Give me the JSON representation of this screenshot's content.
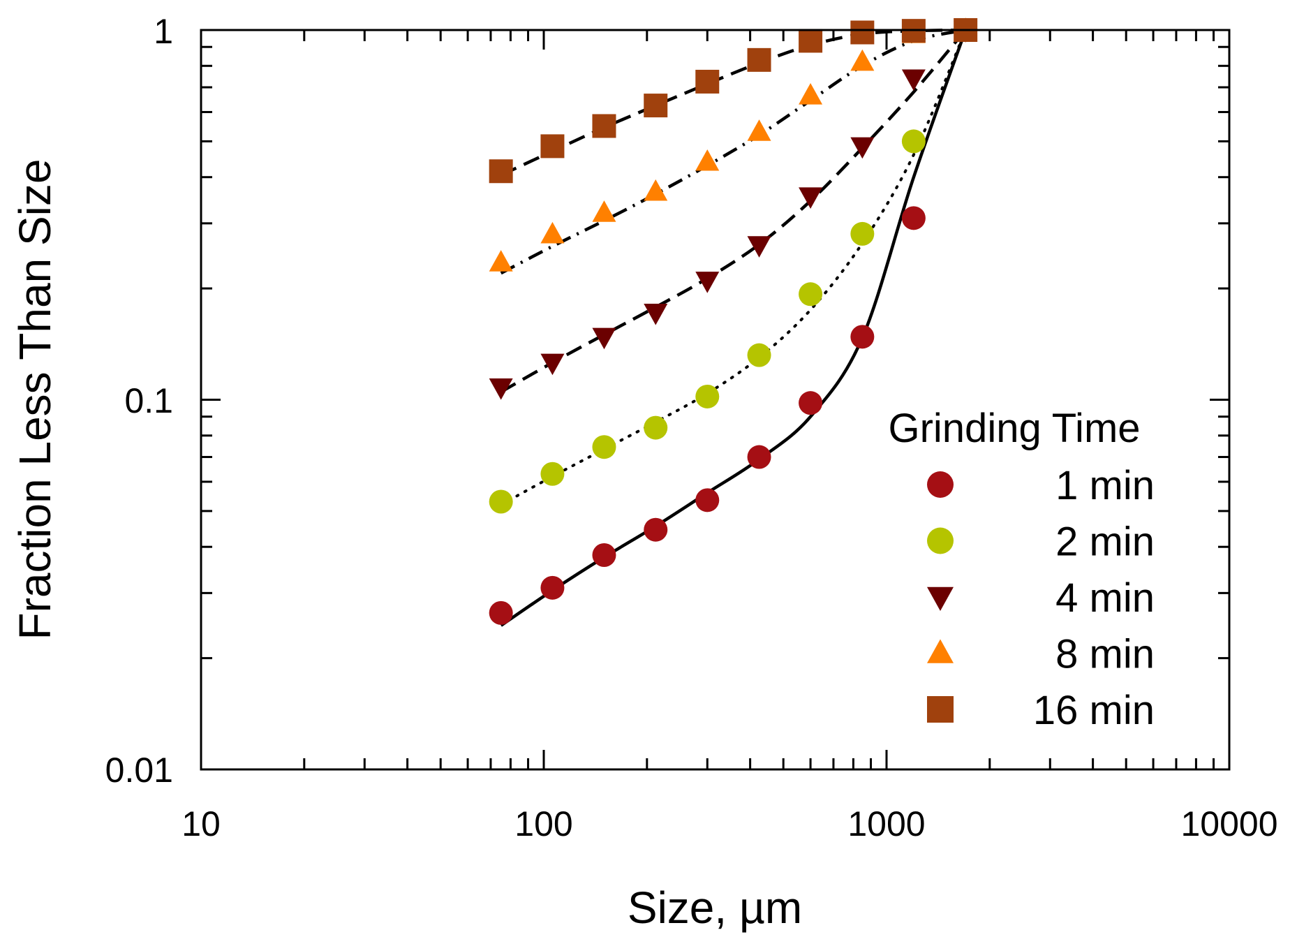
{
  "chart_data": {
    "type": "scatter",
    "title": "",
    "xlabel": "Size, µm",
    "ylabel": "Fraction Less Than Size",
    "xscale": "log",
    "yscale": "log",
    "xlim": [
      10,
      10000
    ],
    "ylim": [
      0.01,
      1
    ],
    "x_tick_labels": [
      "10",
      "100",
      "1000",
      "10000"
    ],
    "y_tick_labels": [
      "0.01",
      "0.1",
      "1"
    ],
    "grid": false,
    "legend": {
      "title": "Grinding Time",
      "position": "bottom-right"
    },
    "x": [
      75,
      106,
      150,
      212,
      300,
      425,
      600,
      850,
      1200,
      1700
    ],
    "series": [
      {
        "name": "1 min",
        "marker": "circle",
        "color": "#a50f14",
        "fit_line": "solid",
        "values": [
          0.0265,
          0.031,
          0.038,
          0.0445,
          0.0535,
          0.07,
          0.098,
          0.148,
          0.31,
          1.0
        ],
        "fit": [
          0.0245,
          0.0305,
          0.0375,
          0.0455,
          0.056,
          0.069,
          0.09,
          0.147,
          0.4,
          1.0
        ]
      },
      {
        "name": "2 min",
        "marker": "circle",
        "color": "#b5c400",
        "fit_line": "dotted",
        "values": [
          0.053,
          0.063,
          0.0745,
          0.084,
          0.102,
          0.132,
          0.193,
          0.281,
          0.5,
          1.0
        ],
        "fit": [
          0.052,
          0.062,
          0.0735,
          0.087,
          0.104,
          0.13,
          0.175,
          0.265,
          0.46,
          1.0
        ]
      },
      {
        "name": "4 min",
        "marker": "triangle-down",
        "color": "#6b0000",
        "fit_line": "dashed",
        "values": [
          0.108,
          0.126,
          0.148,
          0.172,
          0.21,
          0.262,
          0.355,
          0.485,
          0.74,
          1.0
        ],
        "fit": [
          0.105,
          0.126,
          0.15,
          0.178,
          0.213,
          0.263,
          0.345,
          0.48,
          0.68,
          1.0
        ]
      },
      {
        "name": "8 min",
        "marker": "triangle-up",
        "color": "#ff8000",
        "fit_line": "dotted-dashed",
        "values": [
          0.235,
          0.28,
          0.32,
          0.365,
          0.44,
          0.53,
          0.665,
          0.82,
          0.975,
          1.0
        ],
        "fit": [
          0.22,
          0.26,
          0.305,
          0.36,
          0.43,
          0.52,
          0.645,
          0.8,
          0.935,
          1.0
        ]
      },
      {
        "name": "16 min",
        "marker": "square",
        "color": "#a0410d",
        "fit_line": "dashed",
        "values": [
          0.415,
          0.485,
          0.55,
          0.625,
          0.725,
          0.83,
          0.935,
          0.985,
          0.995,
          1.0
        ],
        "fit": [
          0.405,
          0.47,
          0.545,
          0.625,
          0.715,
          0.815,
          0.91,
          0.975,
          0.995,
          1.0
        ]
      }
    ]
  }
}
